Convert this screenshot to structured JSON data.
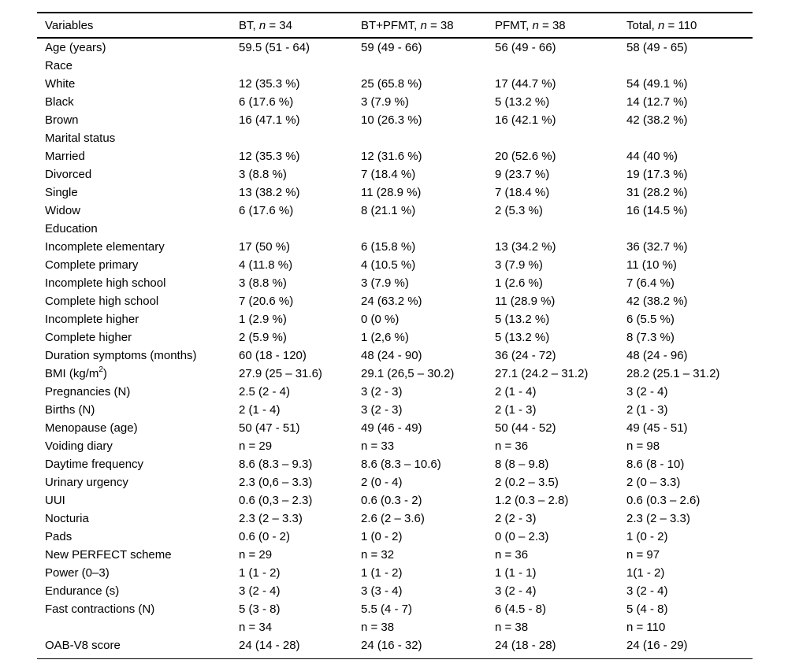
{
  "table": {
    "header": {
      "variables": "Variables",
      "groups": [
        {
          "pre": "BT, ",
          "n": "n",
          "post": " = 34"
        },
        {
          "pre": "BT+PFMT, ",
          "n": "n",
          "post": " = 38"
        },
        {
          "pre": "PFMT, ",
          "n": "n",
          "post": " = 38"
        },
        {
          "pre": "Total, ",
          "n": "n",
          "post": " = 110"
        }
      ]
    },
    "rows": [
      {
        "label": "Age (years)",
        "values": [
          "59.5 (51 - 64)",
          "59 (49 - 66)",
          "56 (49 - 66)",
          "58 (49 - 65)"
        ]
      },
      {
        "label": "Race",
        "values": [
          "",
          "",
          "",
          ""
        ]
      },
      {
        "label": "White",
        "values": [
          "12 (35.3 %)",
          "25 (65.8 %)",
          "17 (44.7 %)",
          "54 (49.1 %)"
        ]
      },
      {
        "label": "Black",
        "values": [
          "6 (17.6 %)",
          "3 (7.9 %)",
          "5 (13.2 %)",
          "14 (12.7 %)"
        ]
      },
      {
        "label": "Brown",
        "values": [
          "16 (47.1 %)",
          "10 (26.3 %)",
          "16 (42.1 %)",
          "42 (38.2 %)"
        ]
      },
      {
        "label": "Marital status",
        "values": [
          "",
          "",
          "",
          ""
        ]
      },
      {
        "label": "Married",
        "values": [
          "12 (35.3 %)",
          "12 (31.6 %)",
          "20 (52.6 %)",
          "44 (40 %)"
        ]
      },
      {
        "label": "Divorced",
        "values": [
          "3 (8.8 %)",
          "7 (18.4 %)",
          "9 (23.7 %)",
          "19 (17.3 %)"
        ]
      },
      {
        "label": "Single",
        "values": [
          "13 (38.2 %)",
          "11 (28.9 %)",
          "7 (18.4 %)",
          "31 (28.2 %)"
        ]
      },
      {
        "label": "Widow",
        "values": [
          "6 (17.6 %)",
          "8 (21.1 %)",
          "2 (5.3 %)",
          "16 (14.5 %)"
        ]
      },
      {
        "label": "Education",
        "values": [
          "",
          "",
          "",
          ""
        ]
      },
      {
        "label": "Incomplete elementary",
        "values": [
          "17 (50 %)",
          "6 (15.8 %)",
          "13 (34.2 %)",
          "36 (32.7 %)"
        ]
      },
      {
        "label": "Complete primary",
        "values": [
          "4 (11.8 %)",
          "4 (10.5 %)",
          "3 (7.9 %)",
          "11 (10 %)"
        ]
      },
      {
        "label": "Incomplete high school",
        "values": [
          "3 (8.8 %)",
          "3 (7.9 %)",
          "1 (2.6 %)",
          "7 (6.4 %)"
        ]
      },
      {
        "label": "Complete high school",
        "values": [
          "7 (20.6 %)",
          "24 (63.2 %)",
          "11 (28.9 %)",
          "42 (38.2 %)"
        ]
      },
      {
        "label": "Incomplete higher",
        "values": [
          "1 (2.9 %)",
          "0 (0 %)",
          "5 (13.2 %)",
          "6 (5.5 %)"
        ]
      },
      {
        "label": "Complete higher",
        "values": [
          "2 (5.9 %)",
          "1 (2,6 %)",
          "5 (13.2 %)",
          "8 (7.3 %)"
        ]
      },
      {
        "label": "Duration symptoms (months)",
        "values": [
          "60 (18 - 120)",
          "48 (24 - 90)",
          "36 (24 - 72)",
          "48 (24 - 96)"
        ]
      },
      {
        "label": "BMI (kg/m2)",
        "label_parts": {
          "pre": "BMI (kg/m",
          "sup": "2",
          "post": ")"
        },
        "values": [
          "27.9 (25 – 31.6)",
          "29.1 (26,5 – 30.2)",
          "27.1 (24.2 – 31.2)",
          "28.2 (25.1 – 31.2)"
        ]
      },
      {
        "label": "Pregnancies (N)",
        "values": [
          "2.5 (2 - 4)",
          "3 (2 - 3)",
          "2 (1 - 4)",
          "3 (2 - 4)"
        ]
      },
      {
        "label": "Births (N)",
        "values": [
          "2 (1 - 4)",
          "3 (2 - 3)",
          "2 (1 - 3)",
          "2 (1 - 3)"
        ]
      },
      {
        "label": "Menopause (age)",
        "values": [
          "50 (47 - 51)",
          "49 (46 - 49)",
          "50 (44 - 52)",
          "49 (45 - 51)"
        ]
      },
      {
        "label": "Voiding diary",
        "values": [
          "n = 29",
          "n = 33",
          "n = 36",
          "n = 98"
        ]
      },
      {
        "label": "Daytime frequency",
        "values": [
          "8.6 (8.3 – 9.3)",
          "8.6 (8.3 – 10.6)",
          "8 (8 – 9.8)",
          "8.6 (8 - 10)"
        ]
      },
      {
        "label": "Urinary urgency",
        "values": [
          "2.3 (0,6 – 3.3)",
          "2 (0 - 4)",
          "2 (0.2 – 3.5)",
          "2 (0 – 3.3)"
        ]
      },
      {
        "label": "UUI",
        "values": [
          "0.6 (0,3 – 2.3)",
          "0.6 (0.3 - 2)",
          "1.2 (0.3 – 2.8)",
          "0.6 (0.3 – 2.6)"
        ]
      },
      {
        "label": "Nocturia",
        "values": [
          "2.3 (2 – 3.3)",
          "2.6 (2 – 3.6)",
          "2 (2 - 3)",
          "2.3 (2 – 3.3)"
        ]
      },
      {
        "label": "Pads",
        "values": [
          "0.6 (0 - 2)",
          "1 (0 - 2)",
          "0 (0 – 2.3)",
          "1 (0 - 2)"
        ]
      },
      {
        "label": "New PERFECT scheme",
        "values": [
          "n = 29",
          "n = 32",
          "n = 36",
          "n = 97"
        ]
      },
      {
        "label": "Power (0–3)",
        "values": [
          "1 (1 - 2)",
          "1 (1 - 2)",
          "1 (1 - 1)",
          "1(1 - 2)"
        ]
      },
      {
        "label": "Endurance (s)",
        "values": [
          "3 (2 - 4)",
          "3 (3 - 4)",
          "3 (2 - 4)",
          "3 (2 - 4)"
        ]
      },
      {
        "label": "Fast contractions (N)",
        "values": [
          "5 (3 - 8)",
          "5.5 (4 - 7)",
          "6 (4.5 - 8)",
          "5 (4 - 8)"
        ]
      },
      {
        "label": "",
        "values": [
          "n = 34",
          "n = 38",
          "n = 38",
          "n = 110"
        ]
      },
      {
        "label": "OAB-V8 score",
        "values": [
          "24 (14 - 28)",
          "24 (16 - 32)",
          "24 (18 - 28)",
          "24 (16 - 29)"
        ]
      }
    ]
  }
}
